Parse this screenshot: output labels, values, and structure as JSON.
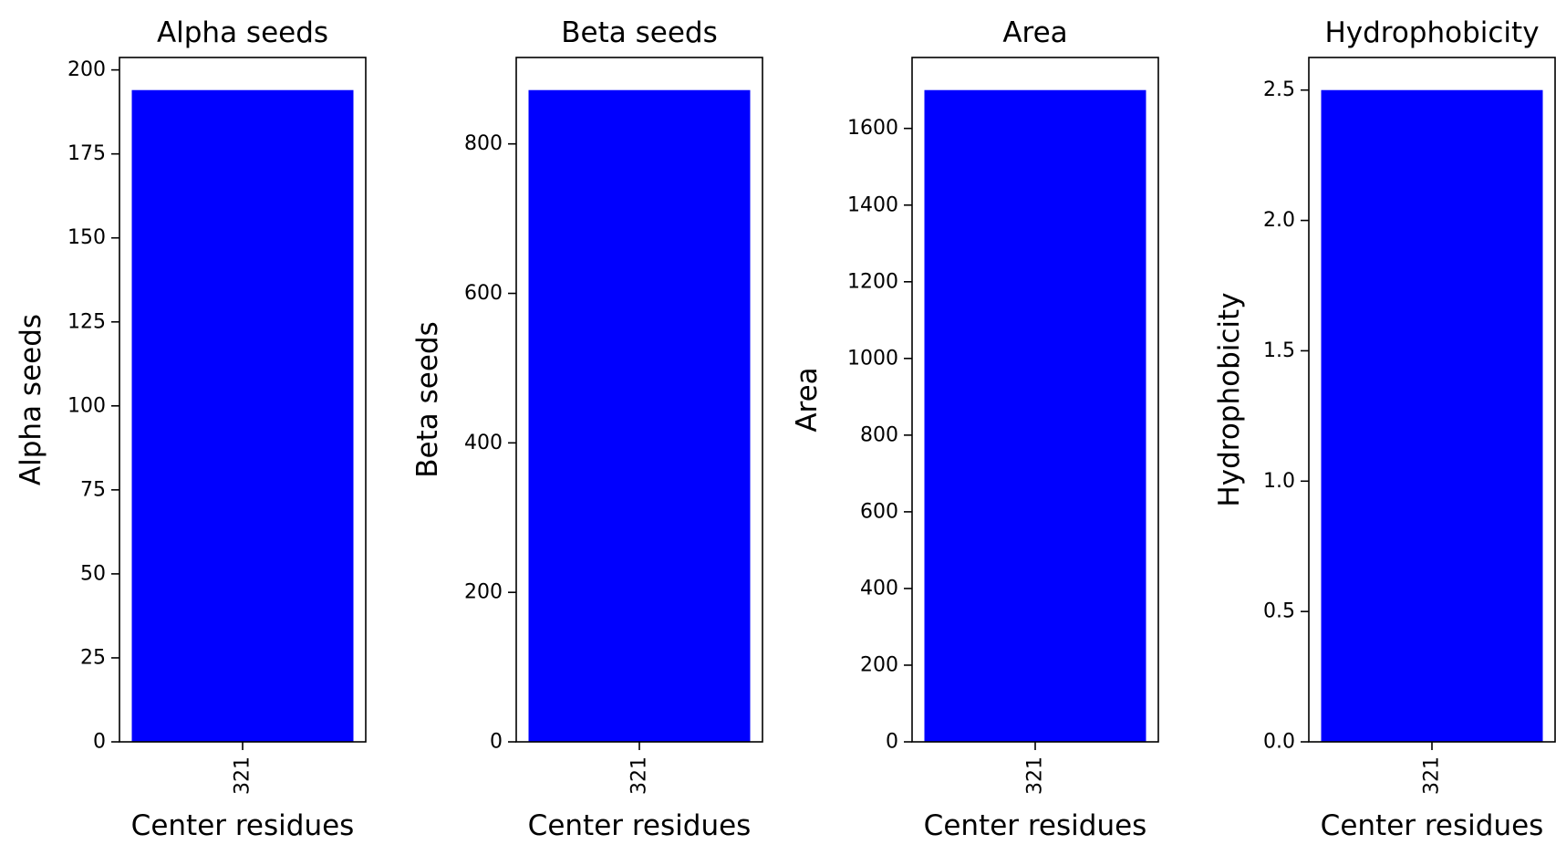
{
  "chart_data": [
    {
      "type": "bar",
      "title": "Alpha seeds",
      "xlabel": "Center residues",
      "ylabel": "Alpha seeds",
      "categories": [
        "321"
      ],
      "values": [
        194
      ],
      "ylim": [
        0,
        203.7
      ],
      "yticks": [
        0,
        25,
        50,
        75,
        100,
        125,
        150,
        175,
        200
      ],
      "ytick_labels": [
        "0",
        "25",
        "50",
        "75",
        "100",
        "125",
        "150",
        "175",
        "200"
      ],
      "color": "#0000ff",
      "grid": false
    },
    {
      "type": "bar",
      "title": "Beta seeds",
      "xlabel": "Center residues",
      "ylabel": "Beta seeds",
      "categories": [
        "321"
      ],
      "values": [
        872
      ],
      "ylim": [
        0,
        915.6
      ],
      "yticks": [
        0,
        200,
        400,
        600,
        800
      ],
      "ytick_labels": [
        "0",
        "200",
        "400",
        "600",
        "800"
      ],
      "color": "#0000ff",
      "grid": false
    },
    {
      "type": "bar",
      "title": "Area",
      "xlabel": "Center residues",
      "ylabel": "Area",
      "categories": [
        "321"
      ],
      "values": [
        1700
      ],
      "ylim": [
        0,
        1785
      ],
      "yticks": [
        0,
        200,
        400,
        600,
        800,
        1000,
        1200,
        1400,
        1600
      ],
      "ytick_labels": [
        "0",
        "200",
        "400",
        "600",
        "800",
        "1000",
        "1200",
        "1400",
        "1600"
      ],
      "color": "#0000ff",
      "grid": false
    },
    {
      "type": "bar",
      "title": "Hydrophobicity",
      "xlabel": "Center residues",
      "ylabel": "Hydrophobicity",
      "categories": [
        "321"
      ],
      "values": [
        2.5
      ],
      "ylim": [
        0,
        2.625
      ],
      "yticks": [
        0,
        0.5,
        1.0,
        1.5,
        2.0,
        2.5
      ],
      "ytick_labels": [
        "0.0",
        "0.5",
        "1.0",
        "1.5",
        "2.0",
        "2.5"
      ],
      "color": "#0000ff",
      "grid": false
    }
  ]
}
